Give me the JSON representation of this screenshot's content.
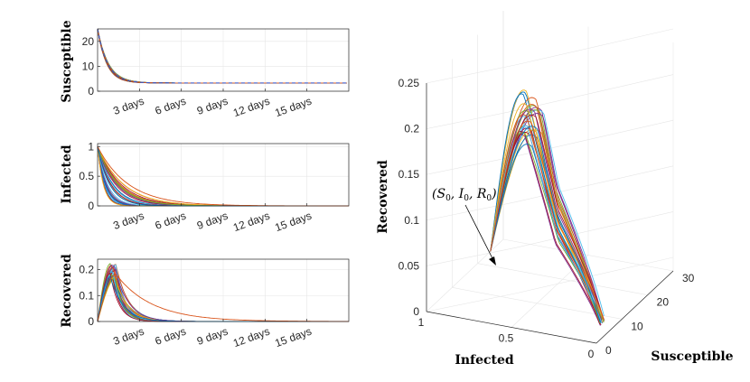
{
  "chart_data": [
    {
      "type": "line",
      "id": "susceptible-panel",
      "ylabel": "Susceptible",
      "ylim": [
        0,
        25
      ],
      "yticks": [
        "0",
        "10",
        "20"
      ],
      "ytick_values": [
        0,
        10,
        20
      ],
      "xlim": [
        0,
        18
      ],
      "xtick_values": [
        3,
        6,
        9,
        12,
        15
      ],
      "xticks": [
        "3 days",
        "6 days",
        "9 days",
        "12 days",
        "15 days"
      ],
      "grid": true,
      "series_description": "30 overlapping simulation runs; each starts near S=25 and decays quickly to a plateau near S=3.3",
      "start_value": 25,
      "plateau_value": 3.3,
      "decay_days": 0.7
    },
    {
      "type": "line",
      "id": "infected-panel",
      "ylabel": "Infected",
      "ylim": [
        0,
        1.05
      ],
      "yticks": [
        "0",
        "0.5",
        "1"
      ],
      "ytick_values": [
        0,
        0.5,
        1
      ],
      "xlim": [
        0,
        18
      ],
      "xtick_values": [
        3,
        6,
        9,
        12,
        15
      ],
      "xticks": [
        "3 days",
        "6 days",
        "9 days",
        "12 days",
        "15 days"
      ],
      "grid": true,
      "start_value": 1,
      "decay_days_range": [
        0.4,
        2.3
      ]
    },
    {
      "type": "line",
      "id": "recovered-panel",
      "ylabel": "Recovered",
      "ylim": [
        0,
        0.24
      ],
      "yticks": [
        "0",
        "0.1",
        "0.2"
      ],
      "ytick_values": [
        0,
        0.1,
        0.2
      ],
      "xlim": [
        0,
        18
      ],
      "xtick_values": [
        3,
        6,
        9,
        12,
        15
      ],
      "xticks": [
        "3 days",
        "6 days",
        "9 days",
        "12 days",
        "15 days"
      ],
      "grid": true,
      "peak_range": [
        0.16,
        0.225
      ],
      "peak_day_range": [
        0.9,
        1.4
      ]
    },
    {
      "type": "line3d",
      "id": "phase-portrait",
      "xlabel": "Infected",
      "ylabel": "Susceptible",
      "zlabel": "Recovered",
      "zticks": [
        "0",
        "0.05",
        "0.1",
        "0.15",
        "0.2",
        "0.25"
      ],
      "ztick_values": [
        0,
        0.05,
        0.1,
        0.15,
        0.2,
        0.25
      ],
      "xticks": [
        "1",
        "0.5",
        "0"
      ],
      "xtick_values": [
        1,
        0.5,
        0
      ],
      "yticks": [
        "0",
        "10",
        "20",
        "30"
      ],
      "ytick_values": [
        0,
        10,
        20,
        30
      ],
      "annotation": {
        "var1": "S",
        "var2": "I",
        "var3": "R",
        "sub": "0"
      }
    }
  ],
  "series_colors": [
    "#0072BD",
    "#D95319",
    "#EDB120",
    "#7E2F8E",
    "#77AC30",
    "#4DBEEE",
    "#A2142F"
  ],
  "run_count": 30,
  "panel_axes_color": "#262626",
  "grid_color": "#e6e6e6",
  "dashed_overlay_color": "#3355cc"
}
